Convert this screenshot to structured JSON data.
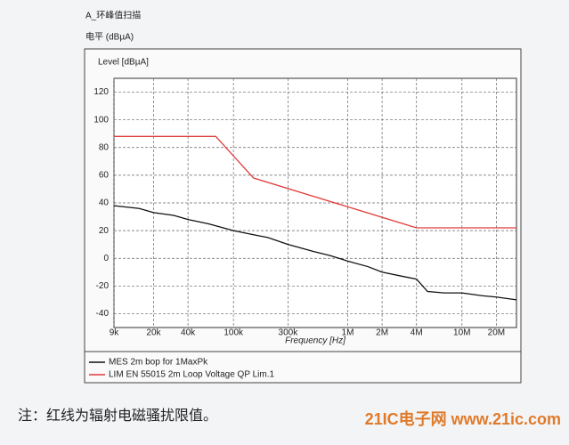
{
  "header": {
    "title": "A_环峰值扫描",
    "unit": "电平 (dBµA)"
  },
  "chart_data": {
    "type": "line",
    "ylabel": "Level [dBµA]",
    "xlabel": "Frequency [Hz]",
    "log_x": true,
    "grid": true,
    "xlim": [
      9000,
      30000000
    ],
    "xticks": [
      {
        "value": 9000,
        "label": "9k"
      },
      {
        "value": 20000,
        "label": "20k"
      },
      {
        "value": 40000,
        "label": "40k"
      },
      {
        "value": 100000,
        "label": "100k"
      },
      {
        "value": 300000,
        "label": "300k"
      },
      {
        "value": 1000000,
        "label": "1M"
      },
      {
        "value": 2000000,
        "label": "2M"
      },
      {
        "value": 4000000,
        "label": "4M"
      },
      {
        "value": 10000000,
        "label": "10M"
      },
      {
        "value": 20000000,
        "label": "20M"
      }
    ],
    "ylim": [
      -50,
      130
    ],
    "yticks": [
      -40,
      -20,
      0,
      20,
      40,
      60,
      80,
      100,
      120
    ],
    "series": [
      {
        "name": "MES  2m  bop for 1MaxPk",
        "color": "#111111",
        "x": [
          9000,
          15000,
          20000,
          30000,
          40000,
          60000,
          100000,
          150000,
          200000,
          300000,
          500000,
          700000,
          1000000,
          1500000,
          2000000,
          3000000,
          4000000,
          5000000,
          7000000,
          10000000,
          15000000,
          20000000,
          30000000
        ],
        "values": [
          38,
          36,
          33,
          31,
          28,
          25,
          20,
          17,
          15,
          10,
          5,
          2,
          -2,
          -6,
          -10,
          -13,
          -15,
          -24,
          -25,
          -25,
          -27,
          -28,
          -30
        ]
      },
      {
        "name": "LIM  EN 55015  2m  Loop       Voltage QP Lim.1",
        "color": "#e03a3a",
        "x": [
          9000,
          70000,
          150000,
          4000000,
          30000000
        ],
        "values": [
          88,
          88,
          58,
          22,
          22
        ]
      }
    ]
  },
  "caption": "注：红线为辐射电磁骚扰限值。",
  "watermark": "21IC电子网 www.21ic.com"
}
